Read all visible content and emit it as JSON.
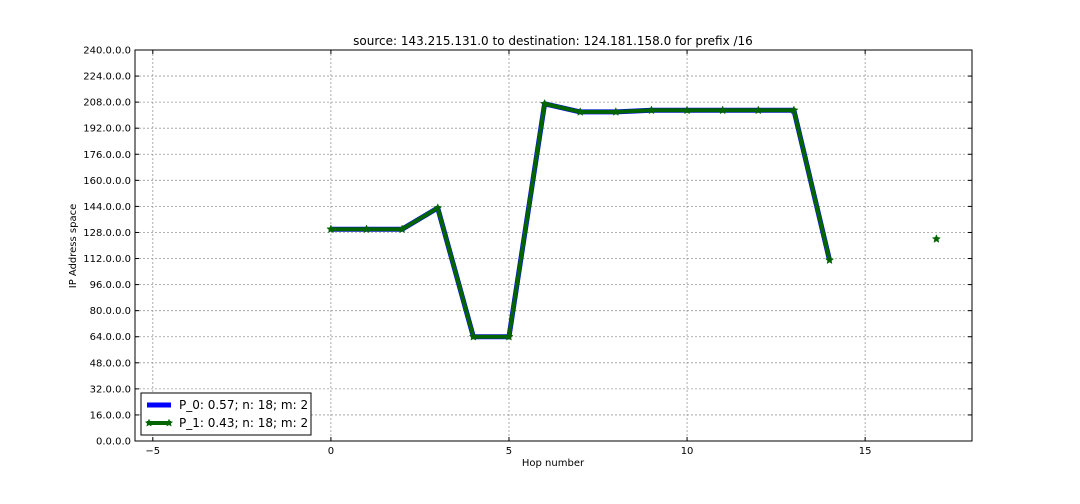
{
  "chart_data": {
    "type": "line",
    "title": "source: 143.215.131.0 to destination: 124.181.158.0 for prefix /16",
    "xlabel": "Hop number",
    "ylabel": "IP Address space",
    "xlim": [
      -5.5,
      18
    ],
    "ylim": [
      0,
      240
    ],
    "x_ticks": [
      -5,
      0,
      5,
      10,
      15
    ],
    "y_ticks": [
      0,
      16,
      32,
      48,
      64,
      80,
      96,
      112,
      128,
      144,
      160,
      176,
      192,
      208,
      224,
      240
    ],
    "y_tick_labels": [
      "0.0.0.0",
      "16.0.0.0",
      "32.0.0.0",
      "48.0.0.0",
      "64.0.0.0",
      "80.0.0.0",
      "96.0.0.0",
      "112.0.0.0",
      "128.0.0.0",
      "144.0.0.0",
      "160.0.0.0",
      "176.0.0.0",
      "192.0.0.0",
      "208.0.0.0",
      "224.0.0.0",
      "240.0.0.0"
    ],
    "grid": true,
    "legend_position": "lower-left",
    "series": [
      {
        "name": "P_0: 0.57; n: 18; m: 2",
        "color": "#0000ff",
        "marker": "none",
        "x": [
          0,
          1,
          2,
          3,
          4,
          5,
          6,
          7,
          8,
          9,
          10,
          11,
          12,
          13,
          14
        ],
        "y": [
          130,
          130,
          130,
          143,
          64,
          64,
          207,
          202,
          202,
          203,
          203,
          203,
          203,
          203,
          111
        ]
      },
      {
        "name": "P_1: 0.43; n: 18; m: 2",
        "color": "#006400",
        "marker": "star",
        "x": [
          0,
          1,
          2,
          3,
          4,
          5,
          6,
          7,
          8,
          9,
          10,
          11,
          12,
          13,
          14,
          17
        ],
        "y": [
          130,
          130,
          130,
          143,
          64,
          64,
          207,
          202,
          202,
          203,
          203,
          203,
          203,
          203,
          111,
          124
        ]
      }
    ]
  }
}
